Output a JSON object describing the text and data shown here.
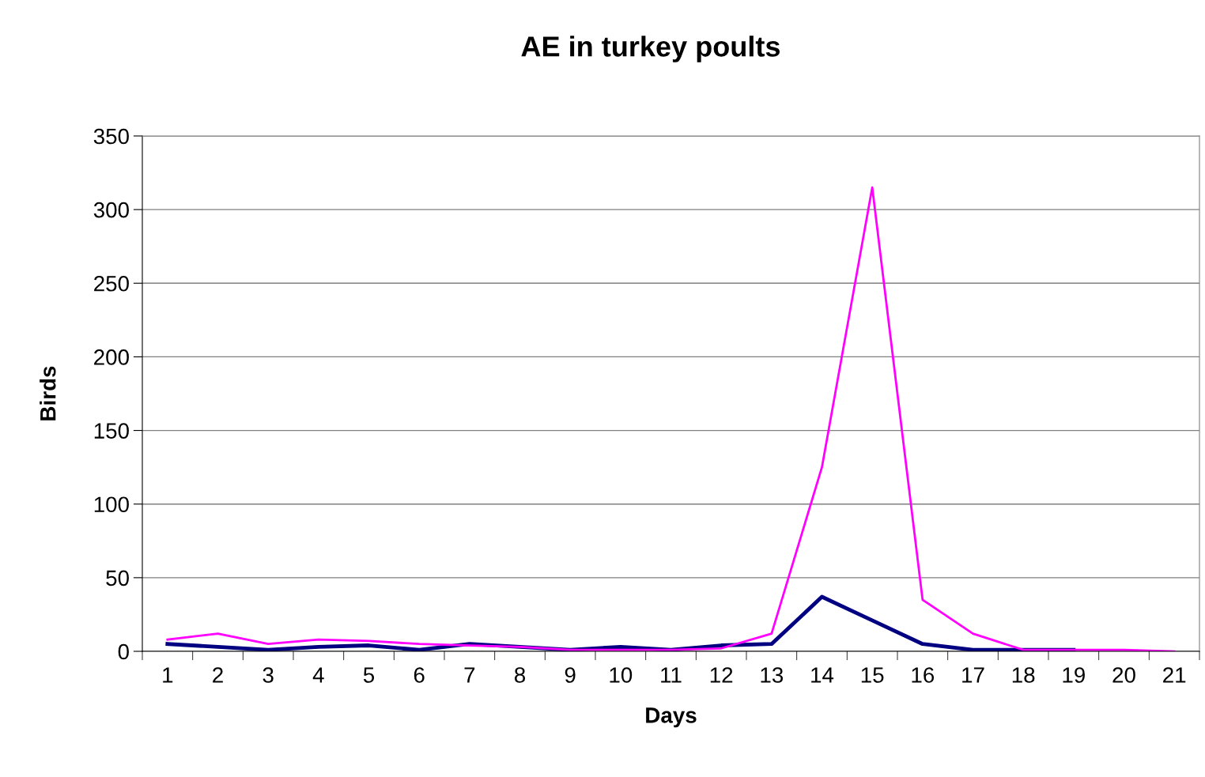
{
  "chart_data": {
    "type": "line",
    "title": "AE in turkey poults",
    "xlabel": "Days",
    "ylabel": "Birds",
    "categories": [
      "1",
      "2",
      "3",
      "4",
      "5",
      "6",
      "7",
      "8",
      "9",
      "10",
      "11",
      "12",
      "13",
      "14",
      "15",
      "16",
      "17",
      "18",
      "19",
      "20",
      "21"
    ],
    "series": [
      {
        "color": "#000080",
        "values": [
          5,
          3,
          1,
          3,
          4,
          1,
          5,
          3,
          1,
          3,
          1,
          4,
          5,
          37,
          21,
          5,
          1,
          1,
          1,
          null,
          null
        ]
      },
      {
        "color": "#ff00ff",
        "values": [
          8,
          12,
          5,
          8,
          7,
          5,
          4,
          3,
          1,
          1,
          1,
          2,
          12,
          125,
          315,
          35,
          12,
          1,
          1,
          1,
          0
        ]
      }
    ],
    "ylim": [
      0,
      350
    ],
    "yticks": [
      0,
      50,
      100,
      150,
      200,
      250,
      300,
      350
    ],
    "grid": "y",
    "marker": "none",
    "line_style": "solid"
  }
}
